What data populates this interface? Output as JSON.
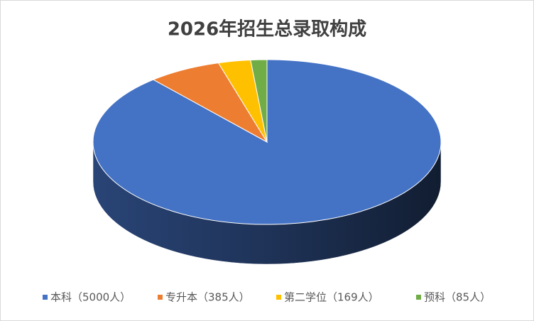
{
  "chart_data": {
    "type": "pie3d",
    "title": "2026年招生总录取构成",
    "categories": [
      "本科（5000人）",
      "专升本（385人）",
      "第二学位（169人）",
      "预科（85人）"
    ],
    "values": [
      5000,
      385,
      169,
      85
    ],
    "colors": [
      "#4472c4",
      "#ed7d31",
      "#ffc000",
      "#70ad47"
    ],
    "legend": "bottom"
  }
}
